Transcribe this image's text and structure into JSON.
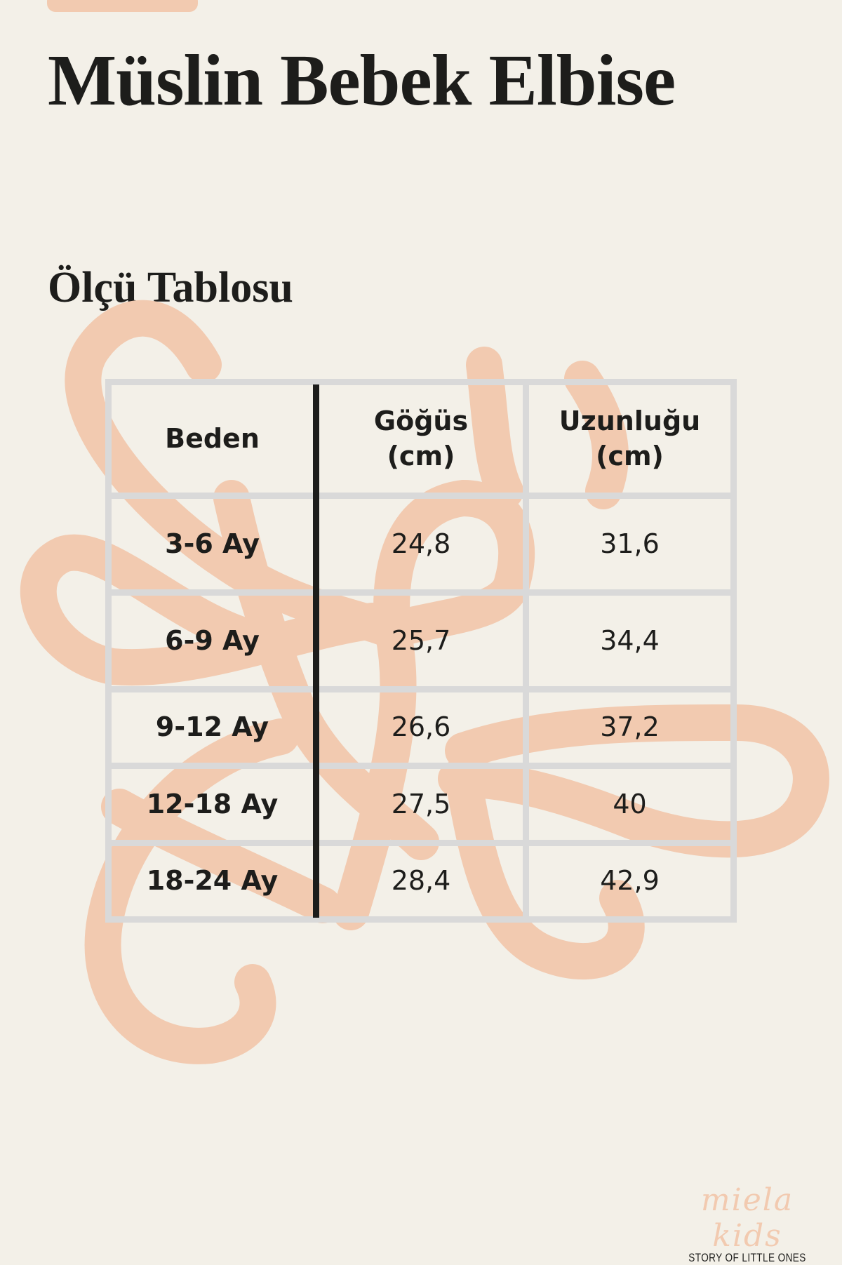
{
  "title": "Müslin Bebek Elbise",
  "subtitle": "Ölçü Tablosu",
  "colors": {
    "background": "#f3f0e8",
    "accent": "#f2cab0",
    "grid": "#d9d9d9",
    "text": "#1d1d1b"
  },
  "table": {
    "headers": [
      "Beden",
      "Göğüs\n(cm)",
      "Uzunluğu\n(cm)"
    ],
    "rows": [
      [
        "3-6 Ay",
        "24,8",
        "31,6"
      ],
      [
        "6-9 Ay",
        "25,7",
        "34,4"
      ],
      [
        "9-12 Ay",
        "26,6",
        "37,2"
      ],
      [
        "12-18 Ay",
        "27,5",
        "40"
      ],
      [
        "18-24 Ay",
        "28,4",
        "42,9"
      ]
    ]
  },
  "logo": {
    "name": "miela kids",
    "tagline": "STORY OF LITTLE ONES"
  }
}
